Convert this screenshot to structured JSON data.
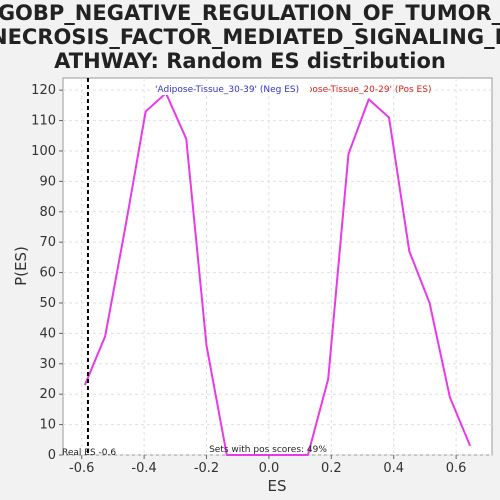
{
  "chart_data": {
    "type": "line",
    "title_lines": [
      "GOBP_NEGATIVE_REGULATION_OF_TUMOR_",
      "NECROSIS_FACTOR_MEDIATED_SIGNALING_P",
      "ATHWAY: Random ES distribution"
    ],
    "xlabel": "ES",
    "ylabel": "P(ES)",
    "xlim": [
      -0.66,
      0.715
    ],
    "ylim": [
      0,
      124
    ],
    "x_ticks": [
      -0.6,
      -0.4,
      -0.2,
      0.0,
      0.2,
      0.4,
      0.6
    ],
    "x_tick_labels": [
      "-0.6",
      "-0.4",
      "-0.2",
      "0.0",
      "0.2",
      "0.4",
      "0.6"
    ],
    "y_ticks": [
      0,
      10,
      20,
      30,
      40,
      50,
      60,
      70,
      80,
      90,
      100,
      110,
      120
    ],
    "y_tick_labels": [
      "0",
      "10",
      "20",
      "30",
      "40",
      "50",
      "60",
      "70",
      "80",
      "90",
      "100",
      "110",
      "120"
    ],
    "grid": true,
    "series": [
      {
        "color": "#e83ae8",
        "x": [
          -0.59,
          -0.525,
          -0.46,
          -0.395,
          -0.33,
          -0.265,
          -0.2,
          -0.135,
          -0.07,
          -0.005,
          0.06,
          0.125,
          0.19,
          0.255,
          0.32,
          0.385,
          0.45,
          0.515,
          0.58,
          0.645
        ],
        "y": [
          23,
          39,
          75,
          113,
          119,
          104,
          36,
          0,
          0,
          0,
          0,
          0,
          25,
          99,
          117,
          111,
          67,
          50,
          19,
          3
        ]
      }
    ],
    "real_es": {
      "value": -0.58,
      "label": "Real ES -0.6"
    },
    "annotations": {
      "neg_label": "'Adipose-Tissue_30-39' (Neg ES)",
      "pos_label": "'Adipose-Tissue_20-29' (Pos ES)",
      "pos_fraction": "Sets with pos scores: 49%"
    },
    "colors": {
      "neg": "#3333cc",
      "pos": "#dd2222",
      "grid": "#e0e0e0",
      "real_es": "#000000"
    }
  }
}
